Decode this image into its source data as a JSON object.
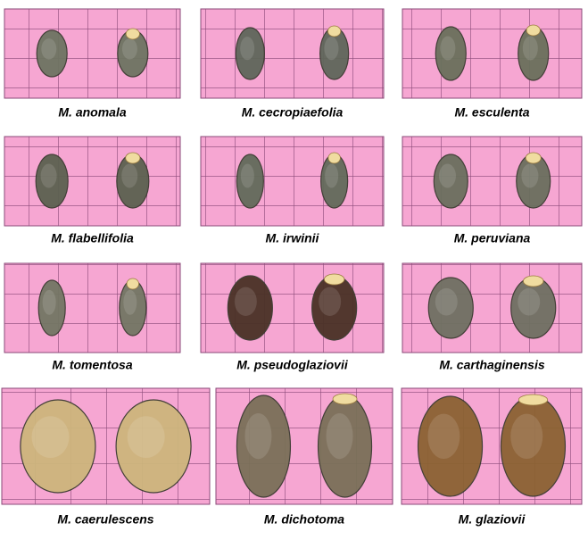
{
  "panels": [
    {
      "caption": "M. anomala"
    },
    {
      "caption": "M. cecropiaefolia"
    },
    {
      "caption": "M. esculenta"
    },
    {
      "caption": "M. flabellifolia"
    },
    {
      "caption": "M. irwinii"
    },
    {
      "caption": "M. peruviana"
    },
    {
      "caption": "M. tomentosa"
    },
    {
      "caption": "M. pseudoglaziovii"
    },
    {
      "caption": "M. carthaginensis"
    },
    {
      "caption": "M. caerulescens"
    },
    {
      "caption": "M. dichotoma"
    },
    {
      "caption": "M. glaziovii"
    }
  ]
}
